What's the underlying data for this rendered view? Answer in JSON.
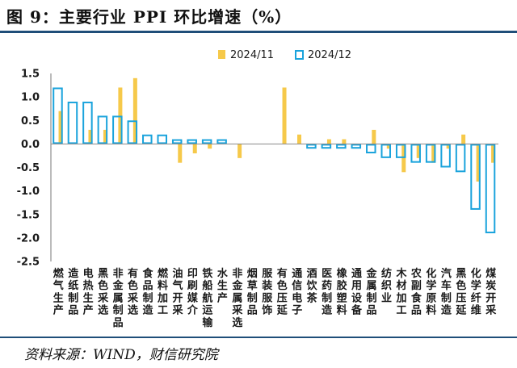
{
  "title": "图 9：主要行业 PPI 环比增速（%）",
  "source": "资料来源：WIND，财信研究院",
  "chart_data": {
    "type": "bar",
    "colors": {
      "nov": "#f6c94a",
      "dec": "#1aa3dc"
    },
    "ylim": [
      -2.5,
      1.5
    ],
    "yticks": [
      "1.5",
      "1.0",
      "0.5",
      "0.0",
      "-0.5",
      "-1.0",
      "-1.5",
      "-2.0",
      "-2.5"
    ],
    "categories": [
      "燃气生产",
      "造纸制品",
      "电热生产",
      "黑色采选",
      "非金属制品",
      "有色采选",
      "食品制造",
      "燃料加工",
      "油气开采",
      "印刷媒介",
      "铁船航运输",
      "水生产",
      "非金属采选",
      "烟草制品",
      "服装服饰",
      "有色压延",
      "通信电子",
      "酒饮茶",
      "医药制造",
      "橡胶塑料",
      "通用设备",
      "金属制品",
      "纺织业",
      "木材加工",
      "农副食品",
      "化学原料",
      "汽车制造",
      "黑色压延",
      "化学纤维",
      "煤炭开采"
    ],
    "series": [
      {
        "name": "2024/11",
        "values": [
          0.7,
          0.0,
          0.3,
          0.3,
          1.2,
          1.4,
          0.0,
          0.0,
          -0.4,
          -0.2,
          -0.1,
          0.0,
          -0.3,
          0.0,
          0.0,
          1.2,
          0.2,
          0.0,
          0.1,
          0.1,
          0.0,
          0.3,
          -0.1,
          -0.6,
          -0.3,
          -0.4,
          -0.1,
          0.2,
          -0.8,
          -0.4
        ]
      },
      {
        "name": "2024/12",
        "values": [
          1.2,
          0.9,
          0.9,
          0.6,
          0.6,
          0.5,
          0.2,
          0.2,
          0.1,
          0.1,
          0.1,
          0.1,
          0.0,
          0.0,
          0.0,
          0.0,
          0.0,
          -0.1,
          -0.1,
          -0.1,
          -0.1,
          -0.2,
          -0.3,
          -0.3,
          -0.4,
          -0.4,
          -0.5,
          -0.6,
          -1.4,
          -1.9
        ]
      }
    ]
  }
}
